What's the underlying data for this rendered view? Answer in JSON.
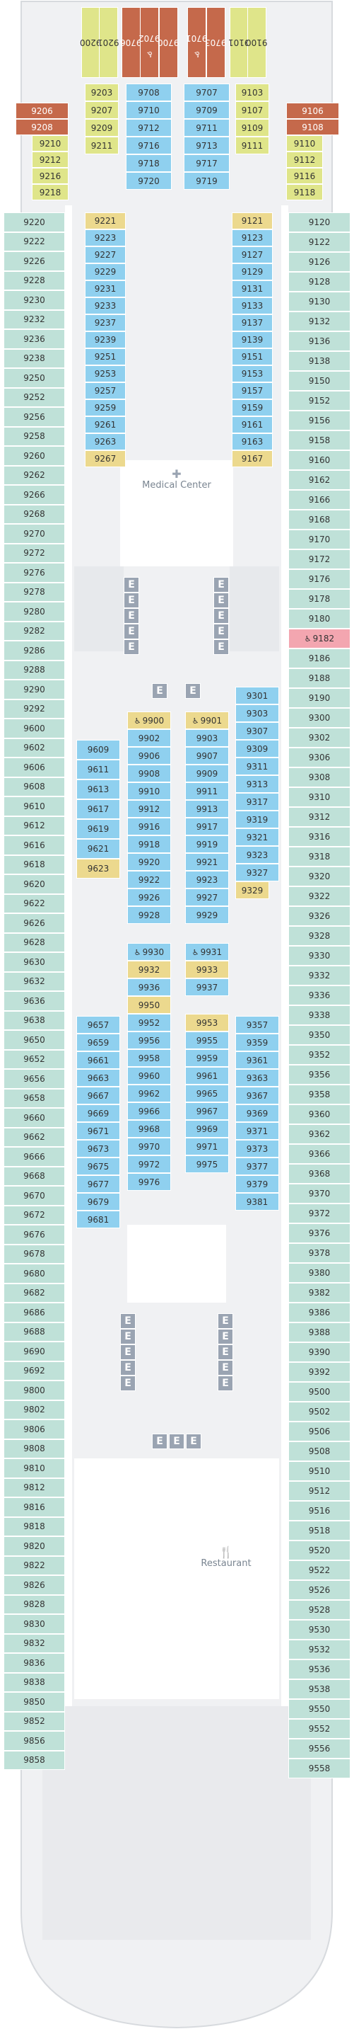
{
  "deck": {
    "palette": {
      "blue": "#8fd0ef",
      "teal": "#bfe1d8",
      "yellow": "#dfe58a",
      "gold": "#ecd98e",
      "rust": "#c5694b",
      "pink": "#f3a6b0",
      "lift": "#9aa4b2",
      "hull": "#f0f1f3"
    },
    "labels": {
      "medical": "Medical Center",
      "restaurant": "Restaurant"
    },
    "icons": {
      "medical": "medical-cross-icon",
      "restaurant": "fork-knife-icon",
      "accessible": "wheelchair-icon",
      "elevator": "elevator-icon"
    },
    "elevator_letter": "E",
    "bow_cabins": [
      {
        "n": "9200",
        "c": "yellow",
        "acc": false
      },
      {
        "n": "9201",
        "c": "yellow",
        "acc": false
      },
      {
        "n": "9706",
        "c": "rust",
        "acc": false
      },
      {
        "n": "9702",
        "c": "rust",
        "acc": true
      },
      {
        "n": "9700",
        "c": "rust",
        "acc": false
      },
      {
        "n": "9701",
        "c": "rust",
        "acc": true
      },
      {
        "n": "9703",
        "c": "rust",
        "acc": false
      },
      {
        "n": "9101",
        "c": "yellow",
        "acc": false
      },
      {
        "n": "9100",
        "c": "yellow",
        "acc": false
      }
    ],
    "fwd_side_left": [
      "9206",
      "9208",
      "9210",
      "9212",
      "9216",
      "9218"
    ],
    "fwd_side_right": [
      "9106",
      "9108",
      "9110",
      "9112",
      "9116",
      "9118"
    ],
    "fwd_inner_a": [
      "9203",
      "9207",
      "9209",
      "9211"
    ],
    "fwd_inner_b": [
      "9708",
      "9710",
      "9712",
      "9716",
      "9718",
      "9720"
    ],
    "fwd_inner_c": [
      "9707",
      "9709",
      "9711",
      "9713",
      "9717",
      "9719"
    ],
    "fwd_inner_d": [
      "9103",
      "9107",
      "9109",
      "9111"
    ],
    "port_side": [
      "9220",
      "9222",
      "9226",
      "9228",
      "9230",
      "9232",
      "9236",
      "9238",
      "9250",
      "9252",
      "9256",
      "9258",
      "9260",
      "9262",
      "9266",
      "9268",
      "9270",
      "9272",
      "9276",
      "9278",
      "9280",
      "9282",
      "9286",
      "9288",
      "9290",
      "9292",
      "9600",
      "9602",
      "9606",
      "9608",
      "9610",
      "9612",
      "9616",
      "9618",
      "9620",
      "9622",
      "9626",
      "9628",
      "9630",
      "9632",
      "9636",
      "9638",
      "9650",
      "9652",
      "9656",
      "9658",
      "9660",
      "9662",
      "9666",
      "9668",
      "9670",
      "9672",
      "9676",
      "9678",
      "9680",
      "9682",
      "9686",
      "9688",
      "9690",
      "9692",
      "9800",
      "9802",
      "9806",
      "9808",
      "9810",
      "9812",
      "9816",
      "9818",
      "9820",
      "9822",
      "9826",
      "9828",
      "9830",
      "9832",
      "9836",
      "9838",
      "9850",
      "9852",
      "9856",
      "9858"
    ],
    "stbd_side": [
      "9120",
      "9122",
      "9126",
      "9128",
      "9130",
      "9132",
      "9136",
      "9138",
      "9150",
      "9152",
      "9156",
      "9158",
      "9160",
      "9162",
      "9166",
      "9168",
      "9170",
      "9172",
      "9176",
      "9178",
      "9180",
      "9182",
      "9186",
      "9188",
      "9190",
      "9300",
      "9302",
      "9306",
      "9308",
      "9310",
      "9312",
      "9316",
      "9318",
      "9320",
      "9322",
      "9326",
      "9328",
      "9330",
      "9332",
      "9336",
      "9338",
      "9350",
      "9352",
      "9356",
      "9358",
      "9360",
      "9362",
      "9366",
      "9368",
      "9370",
      "9372",
      "9376",
      "9378",
      "9380",
      "9382",
      "9386",
      "9388",
      "9390",
      "9392",
      "9500",
      "9502",
      "9506",
      "9508",
      "9510",
      "9512",
      "9516",
      "9518",
      "9520",
      "9522",
      "9526",
      "9528",
      "9530",
      "9532",
      "9536",
      "9538",
      "9550",
      "9552",
      "9556",
      "9558"
    ],
    "inner_port_fwd": [
      {
        "n": "9221",
        "c": "gold"
      },
      {
        "n": "9223",
        "c": "blue"
      },
      {
        "n": "9227",
        "c": "blue"
      },
      {
        "n": "9229",
        "c": "blue"
      },
      {
        "n": "9231",
        "c": "blue"
      },
      {
        "n": "9233",
        "c": "blue"
      },
      {
        "n": "9237",
        "c": "blue"
      },
      {
        "n": "9239",
        "c": "blue"
      },
      {
        "n": "9251",
        "c": "blue"
      },
      {
        "n": "9253",
        "c": "blue"
      },
      {
        "n": "9257",
        "c": "blue"
      },
      {
        "n": "9259",
        "c": "blue"
      },
      {
        "n": "9261",
        "c": "blue"
      },
      {
        "n": "9263",
        "c": "blue"
      },
      {
        "n": "9267",
        "c": "gold"
      }
    ],
    "inner_stbd_fwd": [
      {
        "n": "9121",
        "c": "gold"
      },
      {
        "n": "9123",
        "c": "blue"
      },
      {
        "n": "9127",
        "c": "blue"
      },
      {
        "n": "9129",
        "c": "blue"
      },
      {
        "n": "9131",
        "c": "blue"
      },
      {
        "n": "9133",
        "c": "blue"
      },
      {
        "n": "9137",
        "c": "blue"
      },
      {
        "n": "9139",
        "c": "blue"
      },
      {
        "n": "9151",
        "c": "blue"
      },
      {
        "n": "9153",
        "c": "blue"
      },
      {
        "n": "9157",
        "c": "blue"
      },
      {
        "n": "9159",
        "c": "blue"
      },
      {
        "n": "9161",
        "c": "blue"
      },
      {
        "n": "9163",
        "c": "blue"
      },
      {
        "n": "9167",
        "c": "gold"
      }
    ],
    "mid_port_a": [
      "9609",
      "9611",
      "9613",
      "9617",
      "9619",
      "9621"
    ],
    "mid_port_a_tail": "9623",
    "mid_port_b": [
      {
        "n": "9900",
        "c": "gold",
        "acc": true
      },
      {
        "n": "9902",
        "c": "blue"
      },
      {
        "n": "9906",
        "c": "blue"
      },
      {
        "n": "9908",
        "c": "blue"
      },
      {
        "n": "9910",
        "c": "blue"
      },
      {
        "n": "9912",
        "c": "blue"
      },
      {
        "n": "9916",
        "c": "blue"
      },
      {
        "n": "9918",
        "c": "blue"
      },
      {
        "n": "9920",
        "c": "blue"
      },
      {
        "n": "9922",
        "c": "blue"
      },
      {
        "n": "9926",
        "c": "blue"
      },
      {
        "n": "9928",
        "c": "blue"
      }
    ],
    "mid_stbd_b": [
      {
        "n": "9901",
        "c": "gold",
        "acc": true
      },
      {
        "n": "9903",
        "c": "blue"
      },
      {
        "n": "9907",
        "c": "blue"
      },
      {
        "n": "9909",
        "c": "blue"
      },
      {
        "n": "9911",
        "c": "blue"
      },
      {
        "n": "9913",
        "c": "blue"
      },
      {
        "n": "9917",
        "c": "blue"
      },
      {
        "n": "9919",
        "c": "blue"
      },
      {
        "n": "9921",
        "c": "blue"
      },
      {
        "n": "9923",
        "c": "blue"
      },
      {
        "n": "9927",
        "c": "blue"
      },
      {
        "n": "9929",
        "c": "blue"
      }
    ],
    "mid_stbd_a": [
      "9301",
      "9303",
      "9307",
      "9309",
      "9311",
      "9313",
      "9317",
      "9319",
      "9321",
      "9323",
      "9327"
    ],
    "mid_stbd_a_tail": "9329",
    "center_b": [
      {
        "n": "9930",
        "c": "blue",
        "acc": true
      },
      {
        "n": "9932",
        "c": "gold"
      },
      {
        "n": "9936",
        "c": "blue"
      },
      {
        "n": "9950",
        "c": "gold"
      },
      {
        "n": "9952",
        "c": "blue"
      },
      {
        "n": "9956",
        "c": "blue"
      },
      {
        "n": "9958",
        "c": "blue"
      },
      {
        "n": "9960",
        "c": "blue"
      },
      {
        "n": "9962",
        "c": "blue"
      },
      {
        "n": "9966",
        "c": "blue"
      },
      {
        "n": "9968",
        "c": "blue"
      },
      {
        "n": "9970",
        "c": "blue"
      },
      {
        "n": "9972",
        "c": "blue"
      },
      {
        "n": "9976",
        "c": "blue"
      }
    ],
    "center_c": [
      {
        "n": "9931",
        "c": "blue",
        "acc": true
      },
      {
        "n": "9933",
        "c": "gold"
      },
      {
        "n": "9937",
        "c": "blue"
      },
      {
        "n": "9953",
        "c": "gold"
      },
      {
        "n": "9955",
        "c": "blue"
      },
      {
        "n": "9959",
        "c": "blue"
      },
      {
        "n": "9961",
        "c": "blue"
      },
      {
        "n": "9965",
        "c": "blue"
      },
      {
        "n": "9967",
        "c": "blue"
      },
      {
        "n": "9969",
        "c": "blue"
      },
      {
        "n": "9971",
        "c": "blue"
      },
      {
        "n": "9975",
        "c": "blue"
      }
    ],
    "aft_port_a": [
      "9657",
      "9659",
      "9661",
      "9663",
      "9667",
      "9669",
      "9671",
      "9673",
      "9675",
      "9677",
      "9679",
      "9681"
    ],
    "aft_stbd_a": [
      "9357",
      "9359",
      "9361",
      "9363",
      "9367",
      "9369",
      "9371",
      "9373",
      "9377",
      "9379",
      "9381"
    ]
  }
}
